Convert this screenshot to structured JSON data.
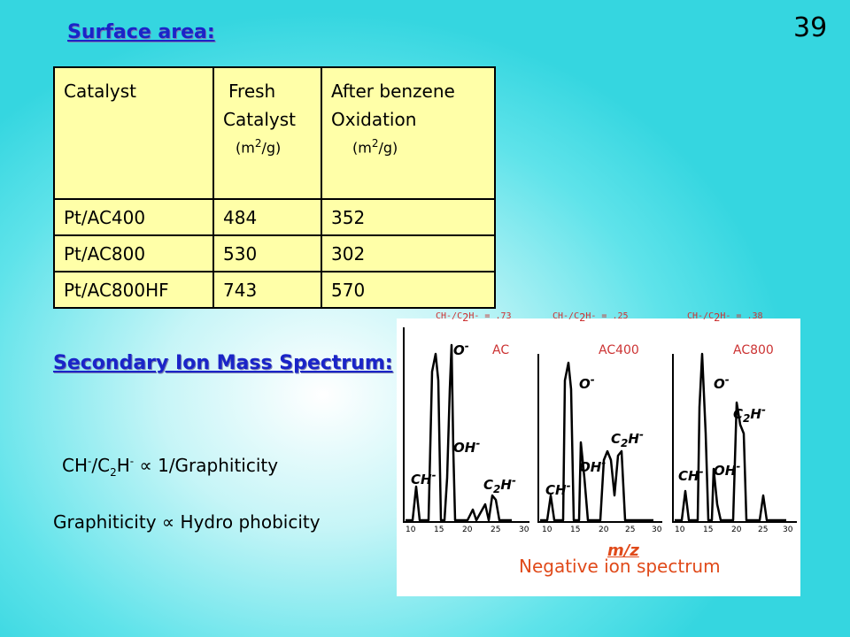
{
  "slide_number": "39",
  "surface": {
    "heading": "Surface area:",
    "table": {
      "headers": [
        {
          "line1": "Catalyst",
          "line2": "",
          "unit": ""
        },
        {
          "line1": "Fresh",
          "line2": "Catalyst",
          "unit": "(m2/g)"
        },
        {
          "line1": "After benzene",
          "line2": "Oxidation",
          "unit": "(m2/g)"
        }
      ],
      "rows": [
        [
          "Pt/AC400",
          "484",
          "352"
        ],
        [
          "Pt/AC800",
          "530",
          "302"
        ],
        [
          "Pt/AC800HF",
          "743",
          "570"
        ]
      ]
    }
  },
  "sims": {
    "heading": "Secondary Ion Mass Spectrum:",
    "relation1": "CH-/C2H- ∝ 1/Graphiticity",
    "relation2": "Graphiticity ∝ Hydro phobicity"
  },
  "spectrum": {
    "ratios": [
      "CH-/C2H- = .73",
      "CH-/C2H- = .25",
      "CH-/C2H- = .38"
    ],
    "samples": [
      "AC",
      "AC400",
      "AC800"
    ],
    "axis_ticks": [
      "10",
      "15",
      "20",
      "25",
      "30"
    ],
    "xlabel": "m/z",
    "caption": "Negative ion spectrum",
    "peak_labels": [
      "O-",
      "OH-",
      "CH-",
      "C2H-"
    ]
  }
}
